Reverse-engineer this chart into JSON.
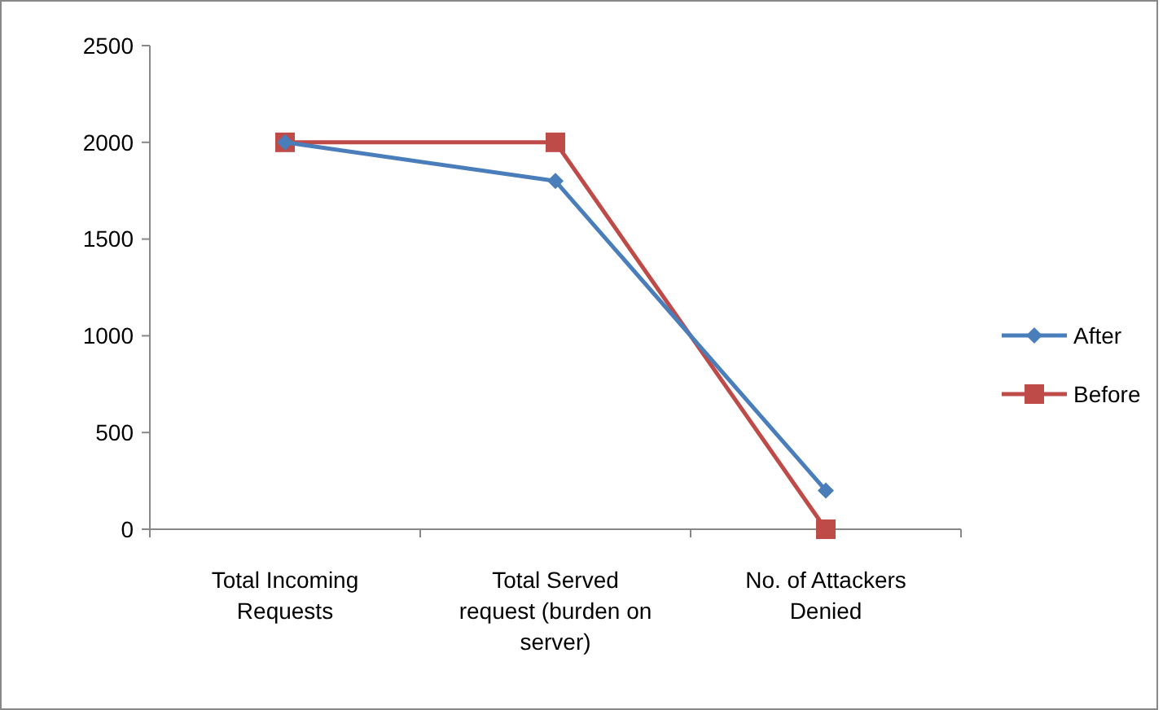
{
  "chart_data": {
    "type": "line",
    "categories": [
      "Total Incoming Requests",
      "Total Served request (burden on server)",
      "No. of Attackers Denied"
    ],
    "series": [
      {
        "name": "After",
        "color": "#4a7ebb",
        "values": [
          2000,
          1800,
          200
        ],
        "marker": "diamond"
      },
      {
        "name": "Before",
        "color": "#be4b48",
        "values": [
          2000,
          2000,
          0
        ],
        "marker": "square"
      }
    ],
    "ylim": [
      0,
      2500
    ],
    "yticks": [
      0,
      500,
      1000,
      1500,
      2000,
      2500
    ],
    "grid": false,
    "legend": "right",
    "line_style": "solid"
  }
}
